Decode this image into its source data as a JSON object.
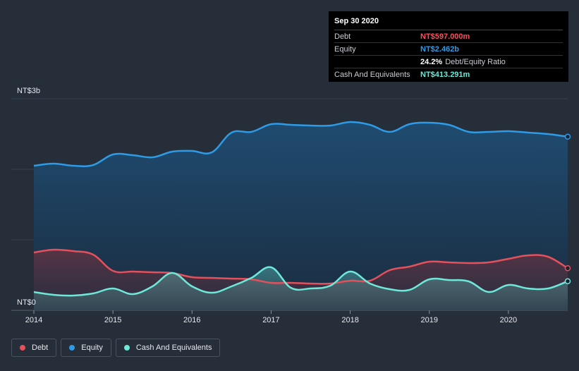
{
  "tooltip": {
    "date": "Sep 30 2020",
    "debt_label": "Debt",
    "debt_value": "NT$597.000m",
    "equity_label": "Equity",
    "equity_value": "NT$2.462b",
    "ratio_value": "24.2%",
    "ratio_label": "Debt/Equity Ratio",
    "cash_label": "Cash And Equivalents",
    "cash_value": "NT$413.291m"
  },
  "legend": {
    "debt": "Debt",
    "equity": "Equity",
    "cash": "Cash And Equivalents"
  },
  "colors": {
    "debt": "#e5505d",
    "equity": "#2e9be6",
    "cash": "#6de8d9",
    "background": "#262e3a"
  },
  "chart_data": {
    "type": "area",
    "y_unit": "NT$",
    "ylim": [
      0,
      3.0
    ],
    "y_tick_labels": [
      "NT$0",
      "NT$3b"
    ],
    "x_ticks": [
      "2014",
      "2015",
      "2016",
      "2017",
      "2018",
      "2019",
      "2020"
    ],
    "xlim": [
      2014.0,
      2020.75
    ],
    "grid": true,
    "legend_position": "bottom-left",
    "series": [
      {
        "name": "Equity",
        "x": [
          2014.0,
          2014.25,
          2014.5,
          2014.75,
          2015.0,
          2015.25,
          2015.5,
          2015.75,
          2016.0,
          2016.25,
          2016.5,
          2016.75,
          2017.0,
          2017.25,
          2017.5,
          2017.75,
          2018.0,
          2018.25,
          2018.5,
          2018.75,
          2019.0,
          2019.25,
          2019.5,
          2019.75,
          2020.0,
          2020.25,
          2020.5,
          2020.75
        ],
        "values": [
          2.05,
          2.08,
          2.05,
          2.06,
          2.21,
          2.2,
          2.17,
          2.25,
          2.26,
          2.24,
          2.52,
          2.53,
          2.64,
          2.63,
          2.62,
          2.62,
          2.67,
          2.63,
          2.53,
          2.64,
          2.66,
          2.63,
          2.53,
          2.53,
          2.54,
          2.52,
          2.5,
          2.462
        ]
      },
      {
        "name": "Debt",
        "x": [
          2014.0,
          2014.25,
          2014.5,
          2014.75,
          2015.0,
          2015.25,
          2015.5,
          2015.75,
          2016.0,
          2016.25,
          2016.5,
          2016.75,
          2017.0,
          2017.25,
          2017.5,
          2017.75,
          2018.0,
          2018.25,
          2018.5,
          2018.75,
          2019.0,
          2019.25,
          2019.5,
          2019.75,
          2020.0,
          2020.25,
          2020.5,
          2020.75
        ],
        "values": [
          0.82,
          0.86,
          0.84,
          0.79,
          0.56,
          0.55,
          0.54,
          0.53,
          0.47,
          0.46,
          0.45,
          0.44,
          0.39,
          0.39,
          0.38,
          0.38,
          0.42,
          0.42,
          0.57,
          0.62,
          0.69,
          0.68,
          0.67,
          0.68,
          0.73,
          0.78,
          0.76,
          0.597
        ]
      },
      {
        "name": "Cash And Equivalents",
        "x": [
          2014.0,
          2014.25,
          2014.5,
          2014.75,
          2015.0,
          2015.25,
          2015.5,
          2015.75,
          2016.0,
          2016.25,
          2016.5,
          2016.75,
          2017.0,
          2017.25,
          2017.5,
          2017.75,
          2018.0,
          2018.25,
          2018.5,
          2018.75,
          2019.0,
          2019.25,
          2019.5,
          2019.75,
          2020.0,
          2020.25,
          2020.5,
          2020.75
        ],
        "values": [
          0.26,
          0.22,
          0.21,
          0.24,
          0.31,
          0.23,
          0.34,
          0.53,
          0.34,
          0.25,
          0.34,
          0.46,
          0.61,
          0.32,
          0.31,
          0.35,
          0.55,
          0.38,
          0.3,
          0.29,
          0.44,
          0.43,
          0.41,
          0.26,
          0.36,
          0.31,
          0.31,
          0.413
        ]
      }
    ]
  }
}
